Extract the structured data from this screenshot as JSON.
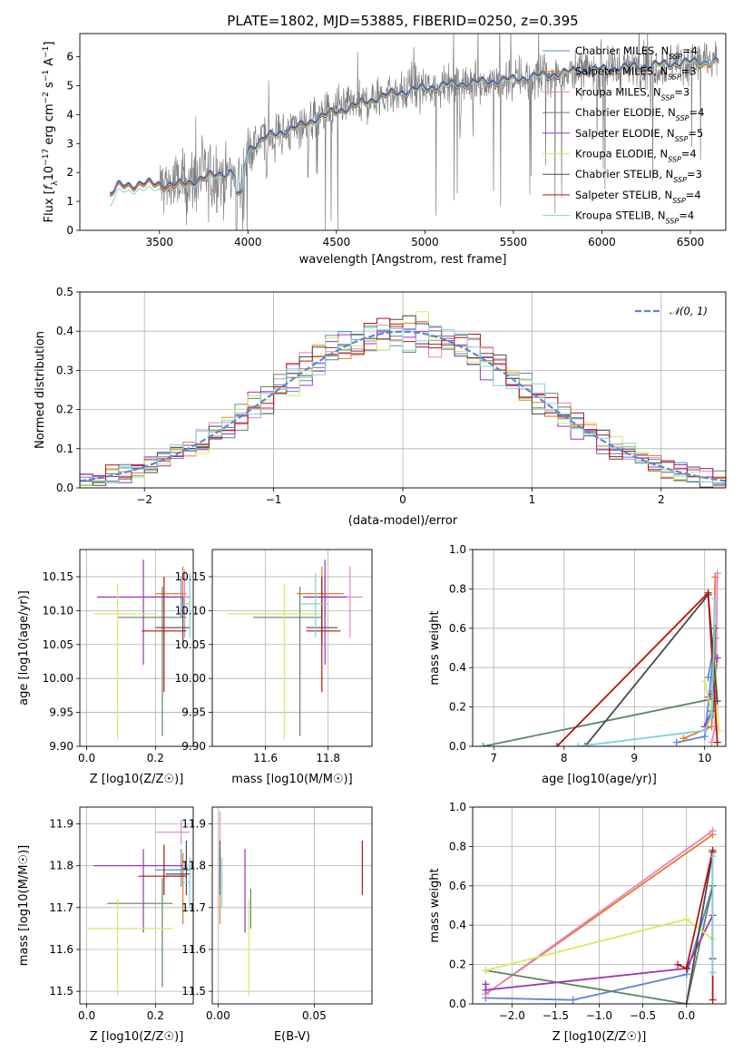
{
  "figure": {
    "title": "PLATE=1802, MJD=53885, FIBERID=0250, z=0.395"
  },
  "colors": {
    "c0": "#5b86d6",
    "c1": "#e77c22",
    "c2": "#e583c8",
    "c3": "#5f8560",
    "c4": "#9b37b6",
    "c5": "#d5ea5f",
    "c6": "#4b4b4b",
    "c7": "#b51414",
    "c8": "#7dd4da",
    "data": "#808080",
    "grid": "#b0b0b0",
    "ref": "#5b86d6"
  },
  "chart_data": [
    {
      "id": "spectrum",
      "type": "line",
      "title": "PLATE=1802, MJD=53885, FIBERID=0250, z=0.395",
      "xlabel": "wavelength [Angstrom, rest frame]",
      "ylabel": "Flux [f_λ 10^-17 erg cm^-2 s^-1 A^-1]",
      "xlim": [
        3050,
        6700
      ],
      "ylim": [
        0,
        6.8
      ],
      "xticks": [
        3500,
        4000,
        4500,
        5000,
        5500,
        6000,
        6500
      ],
      "yticks": [
        0,
        1,
        2,
        3,
        4,
        5,
        6
      ],
      "grid": false,
      "legend_position": "right",
      "legend": [
        "Chabrier MILES, N_SSP=4",
        "Salpeter MILES, N_SSP=3",
        "Kroupa MILES, N_SSP=3",
        "Chabrier ELODIE, N_SSP=4",
        "Salpeter ELODIE, N_SSP=5",
        "Kroupa ELODIE, N_SSP=4",
        "Chabrier STELIB, N_SSP=3",
        "Salpeter STELIB, N_SSP=4",
        "Kroupa STELIB, N_SSP=4"
      ],
      "model_continuum": {
        "x": [
          3220,
          3260,
          3300,
          3400,
          3500,
          3600,
          3700,
          3800,
          3900,
          3960,
          4000,
          4100,
          4200,
          4300,
          4400,
          4500,
          4600,
          4700,
          4800,
          4900,
          5000,
          5100,
          5200,
          5300,
          5400,
          5500,
          5600,
          5700,
          5800,
          5900,
          6000,
          6100,
          6200,
          6300,
          6400,
          6500,
          6600
        ],
        "y": [
          1.2,
          1.5,
          1.55,
          1.6,
          1.6,
          1.55,
          1.7,
          1.9,
          2.0,
          1.7,
          2.8,
          3.2,
          3.4,
          3.6,
          3.9,
          4.1,
          4.3,
          4.5,
          4.7,
          4.8,
          4.9,
          5.0,
          5.05,
          5.1,
          5.15,
          5.2,
          5.3,
          5.35,
          5.45,
          5.5,
          5.55,
          5.6,
          5.65,
          5.7,
          5.75,
          5.8,
          5.8
        ]
      },
      "kroupa_stelib_continuum": {
        "x": [
          3220,
          3260,
          3300,
          3400,
          3500,
          3600,
          3700,
          3800,
          3900,
          3960,
          4000,
          4100,
          4200,
          4300,
          4400,
          4500,
          4600,
          4700,
          4800,
          4900,
          5000,
          5100,
          5200,
          5300,
          5400,
          5500,
          5600,
          5700,
          5800,
          5900,
          6000,
          6100,
          6200,
          6300,
          6400,
          6500,
          6600
        ],
        "y": [
          0.8,
          1.3,
          1.35,
          1.4,
          1.4,
          1.45,
          1.6,
          1.8,
          1.95,
          1.65,
          2.7,
          3.1,
          3.35,
          3.5,
          3.8,
          4.0,
          4.2,
          4.4,
          4.6,
          4.75,
          4.85,
          4.95,
          5.0,
          5.05,
          5.1,
          5.15,
          5.25,
          5.3,
          5.4,
          5.45,
          5.5,
          5.55,
          5.6,
          5.65,
          5.7,
          5.75,
          5.8
        ]
      },
      "data_range": [
        3500,
        6650
      ]
    },
    {
      "id": "residuals",
      "type": "step",
      "xlabel": "(data-model)/error",
      "ylabel": "Normed distribution",
      "xlim": [
        -2.5,
        2.5
      ],
      "ylim": [
        0,
        0.5
      ],
      "xticks": [
        -2,
        -1,
        0,
        1,
        2
      ],
      "yticks": [
        0.0,
        0.1,
        0.2,
        0.3,
        0.4,
        0.5
      ],
      "grid": true,
      "legend_position": "top-right",
      "reference_label": "𝒩(0, 1)"
    },
    {
      "id": "age_vs_Z",
      "type": "errorbar",
      "xlabel": "Z [log10(Z/Z☉)]",
      "ylabel": "age  [log10(age/yr)]",
      "xlim": [
        -0.02,
        0.31
      ],
      "ylim": [
        9.9,
        10.19
      ],
      "xticks": [
        0.0,
        0.2
      ],
      "yticks": [
        9.9,
        9.95,
        10.0,
        10.05,
        10.1,
        10.15
      ],
      "grid": true,
      "points": [
        {
          "c": "c0",
          "x": 0.275,
          "y": 10.12,
          "xl": 0.22,
          "xh": 0.3,
          "yl": 10.09,
          "yh": 10.15
        },
        {
          "c": "c1",
          "x": 0.28,
          "y": 10.125,
          "xl": 0.2,
          "xh": 0.29,
          "yl": 10.09,
          "yh": 10.165
        },
        {
          "c": "c2",
          "x": 0.285,
          "y": 10.12,
          "xl": 0.18,
          "xh": 0.3,
          "yl": 10.06,
          "yh": 10.16
        },
        {
          "c": "c3",
          "x": 0.22,
          "y": 10.09,
          "xl": 0.09,
          "xh": 0.29,
          "yl": 9.915,
          "yh": 10.135
        },
        {
          "c": "c4",
          "x": 0.165,
          "y": 10.12,
          "xl": 0.03,
          "xh": 0.28,
          "yl": 10.02,
          "yh": 10.175
        },
        {
          "c": "c5",
          "x": 0.09,
          "y": 10.095,
          "xl": 0.02,
          "xh": 0.2,
          "yl": 9.91,
          "yh": 10.14
        },
        {
          "c": "c6",
          "x": 0.28,
          "y": 10.075,
          "xl": 0.2,
          "xh": 0.3,
          "yl": 10.05,
          "yh": 10.12
        },
        {
          "c": "c7",
          "x": 0.225,
          "y": 10.07,
          "xl": 0.16,
          "xh": 0.29,
          "yl": 9.98,
          "yh": 10.15
        },
        {
          "c": "c8",
          "x": 0.3,
          "y": 10.11,
          "xl": 0.28,
          "xh": 0.3,
          "yl": 10.06,
          "yh": 10.155
        }
      ]
    },
    {
      "id": "age_vs_mass",
      "type": "errorbar",
      "xlabel": "mass [log10(M/M☉)]",
      "ylabel": "",
      "xlim": [
        11.43,
        11.94
      ],
      "ylim": [
        9.9,
        10.19
      ],
      "xticks": [
        11.6,
        11.8
      ],
      "yticks": [
        9.9,
        9.95,
        10.0,
        10.05,
        10.1,
        10.15
      ],
      "grid": true,
      "points": [
        {
          "c": "c0",
          "x": 11.79,
          "y": 10.12,
          "xl": 11.72,
          "xh": 11.84,
          "yl": 10.09,
          "yh": 10.15
        },
        {
          "c": "c1",
          "x": 11.78,
          "y": 10.125,
          "xl": 11.7,
          "xh": 11.85,
          "yl": 10.09,
          "yh": 10.165
        },
        {
          "c": "c2",
          "x": 11.87,
          "y": 10.12,
          "xl": 11.83,
          "xh": 11.91,
          "yl": 10.06,
          "yh": 10.165
        },
        {
          "c": "c3",
          "x": 11.71,
          "y": 10.09,
          "xl": 11.56,
          "xh": 11.78,
          "yl": 9.915,
          "yh": 10.135
        },
        {
          "c": "c4",
          "x": 11.79,
          "y": 10.12,
          "xl": 11.72,
          "xh": 11.86,
          "yl": 10.02,
          "yh": 10.175
        },
        {
          "c": "c5",
          "x": 11.66,
          "y": 10.095,
          "xl": 11.48,
          "xh": 11.78,
          "yl": 9.91,
          "yh": 10.14
        },
        {
          "c": "c6",
          "x": 11.78,
          "y": 10.075,
          "xl": 11.73,
          "xh": 11.83,
          "yl": 10.05,
          "yh": 10.12
        },
        {
          "c": "c7",
          "x": 11.78,
          "y": 10.07,
          "xl": 11.73,
          "xh": 11.84,
          "yl": 9.98,
          "yh": 10.15
        },
        {
          "c": "c8",
          "x": 11.76,
          "y": 10.11,
          "xl": 11.71,
          "xh": 11.8,
          "yl": 10.06,
          "yh": 10.155
        }
      ]
    },
    {
      "id": "massweight_vs_age",
      "type": "line",
      "xlabel": "age  [log10(age/yr)]",
      "ylabel": "mass weight",
      "xlim": [
        6.7,
        10.3
      ],
      "ylim": [
        0.0,
        1.0
      ],
      "xticks": [
        7,
        8,
        9,
        10
      ],
      "yticks": [
        0.0,
        0.2,
        0.4,
        0.6,
        0.8,
        1.0
      ],
      "grid": true,
      "series": [
        {
          "c": "c0",
          "x": [
            9.6,
            10.0,
            10.15,
            10.05
          ],
          "y": [
            0.02,
            0.05,
            0.55,
            0.35
          ]
        },
        {
          "c": "c1",
          "x": [
            9.7,
            10.1,
            10.15
          ],
          "y": [
            0.04,
            0.1,
            0.86
          ]
        },
        {
          "c": "c2",
          "x": [
            10.1,
            10.15,
            10.18
          ],
          "y": [
            0.02,
            0.1,
            0.88
          ]
        },
        {
          "c": "c3",
          "x": [
            6.85,
            10.1,
            10.15,
            10.12
          ],
          "y": [
            0.0,
            0.24,
            0.6,
            0.16
          ]
        },
        {
          "c": "c4",
          "x": [
            10.0,
            10.1,
            10.18,
            10.12,
            10.05
          ],
          "y": [
            0.1,
            0.18,
            0.45,
            0.28,
            0.25
          ]
        },
        {
          "c": "c5",
          "x": [
            10.0,
            10.1,
            10.15,
            10.2
          ],
          "y": [
            0.33,
            0.17,
            0.42,
            0.08
          ]
        },
        {
          "c": "c6",
          "x": [
            8.3,
            10.05,
            10.18
          ],
          "y": [
            0.0,
            0.77,
            0.23
          ]
        },
        {
          "c": "c7",
          "x": [
            7.9,
            10.05,
            10.18
          ],
          "y": [
            0.0,
            0.78,
            0.02
          ]
        },
        {
          "c": "c8",
          "x": [
            8.2,
            10.0,
            10.1,
            10.15
          ],
          "y": [
            0.0,
            0.08,
            0.16,
            0.75
          ]
        }
      ]
    },
    {
      "id": "mass_vs_Z",
      "type": "errorbar",
      "xlabel": "Z [log10(Z/Z☉)]",
      "ylabel": "mass [log10(M/M☉)]",
      "xlim": [
        -0.02,
        0.31
      ],
      "ylim": [
        11.47,
        11.94
      ],
      "xticks": [
        0.0,
        0.2
      ],
      "yticks": [
        11.5,
        11.6,
        11.7,
        11.8,
        11.9
      ],
      "grid": true,
      "points": [
        {
          "c": "c0",
          "x": 0.275,
          "y": 11.79,
          "xl": 0.2,
          "xh": 0.3,
          "yl": 11.75,
          "yh": 11.84
        },
        {
          "c": "c1",
          "x": 0.28,
          "y": 11.775,
          "xl": 0.22,
          "xh": 0.29,
          "yl": 11.66,
          "yh": 11.83
        },
        {
          "c": "c2",
          "x": 0.275,
          "y": 11.88,
          "xl": 0.2,
          "xh": 0.3,
          "yl": 11.85,
          "yh": 11.91
        },
        {
          "c": "c3",
          "x": 0.22,
          "y": 11.71,
          "xl": 0.06,
          "xh": 0.25,
          "yl": 11.51,
          "yh": 11.77
        },
        {
          "c": "c4",
          "x": 0.165,
          "y": 11.8,
          "xl": 0.02,
          "xh": 0.28,
          "yl": 11.64,
          "yh": 11.84
        },
        {
          "c": "c5",
          "x": 0.09,
          "y": 11.65,
          "xl": 0.0,
          "xh": 0.25,
          "yl": 11.49,
          "yh": 11.72
        },
        {
          "c": "c6",
          "x": 0.29,
          "y": 11.78,
          "xl": 0.23,
          "xh": 0.3,
          "yl": 11.73,
          "yh": 11.86
        },
        {
          "c": "c7",
          "x": 0.225,
          "y": 11.775,
          "xl": 0.15,
          "xh": 0.29,
          "yl": 11.73,
          "yh": 11.85
        },
        {
          "c": "c8",
          "x": 0.3,
          "y": 11.76,
          "xl": 0.28,
          "xh": 0.3,
          "yl": 11.7,
          "yh": 11.82
        }
      ]
    },
    {
      "id": "mass_vs_ebv",
      "type": "errorbar",
      "xlabel": "E(B-V)",
      "ylabel": "",
      "xlim": [
        -0.003,
        0.08
      ],
      "ylim": [
        11.47,
        11.94
      ],
      "xticks": [
        0.0,
        0.05
      ],
      "yticks": [
        11.5,
        11.6,
        11.7,
        11.8,
        11.9
      ],
      "grid": true,
      "points": [
        {
          "c": "c0",
          "x": 0.001,
          "y": 11.79,
          "yl": 11.75,
          "yh": 11.84
        },
        {
          "c": "c1",
          "x": 0.001,
          "y": 11.775,
          "yl": 11.66,
          "yh": 11.83
        },
        {
          "c": "c2",
          "x": 0.001,
          "y": 11.88,
          "yl": 11.85,
          "yh": 11.93
        },
        {
          "c": "c3",
          "x": 0.017,
          "y": 11.71,
          "yl": 11.65,
          "yh": 11.745
        },
        {
          "c": "c4",
          "x": 0.014,
          "y": 11.8,
          "yl": 11.64,
          "yh": 11.84
        },
        {
          "c": "c5",
          "x": 0.016,
          "y": 11.65,
          "yl": 11.49,
          "yh": 11.72
        },
        {
          "c": "c6",
          "x": 0.001,
          "y": 11.78,
          "yl": 11.73,
          "yh": 11.86
        },
        {
          "c": "c7",
          "x": 0.075,
          "y": 11.79,
          "yl": 11.73,
          "yh": 11.86
        },
        {
          "c": "c8",
          "x": 0.002,
          "y": 11.76,
          "yl": 11.7,
          "yh": 11.82
        }
      ]
    },
    {
      "id": "massweight_vs_Z",
      "type": "line",
      "xlabel": "Z [log10(Z/Z☉)]",
      "ylabel": "mass weight",
      "xlim": [
        -2.45,
        0.45
      ],
      "ylim": [
        0.0,
        1.0
      ],
      "xticks": [
        -2.0,
        -1.5,
        -1.0,
        -0.5,
        0.0
      ],
      "yticks": [
        0.0,
        0.2,
        0.4,
        0.6,
        0.8,
        1.0
      ],
      "grid": true,
      "series": [
        {
          "c": "c0",
          "x": [
            -2.3,
            -1.3,
            0.0,
            0.3
          ],
          "y": [
            0.03,
            0.02,
            0.15,
            0.6
          ]
        },
        {
          "c": "c1",
          "x": [
            -2.3,
            0.3
          ],
          "y": [
            0.05,
            0.86
          ]
        },
        {
          "c": "c2",
          "x": [
            -2.3,
            0.3
          ],
          "y": [
            0.05,
            0.88
          ]
        },
        {
          "c": "c3",
          "x": [
            -2.3,
            0.0,
            0.3
          ],
          "y": [
            0.17,
            0.0,
            0.6
          ]
        },
        {
          "c": "c4",
          "x": [
            -2.3,
            -2.3,
            0.0,
            0.3
          ],
          "y": [
            0.1,
            0.07,
            0.18,
            0.45
          ]
        },
        {
          "c": "c5",
          "x": [
            -2.3,
            0.0,
            0.3
          ],
          "y": [
            0.17,
            0.43,
            0.33
          ]
        },
        {
          "c": "c6",
          "x": [
            0.0,
            0.3,
            0.3
          ],
          "y": [
            0.0,
            0.77,
            0.23
          ]
        },
        {
          "c": "c7",
          "x": [
            -0.1,
            0.0,
            0.3,
            0.3
          ],
          "y": [
            0.2,
            0.18,
            0.78,
            0.02
          ]
        },
        {
          "c": "c8",
          "x": [
            0.3,
            0.3
          ],
          "y": [
            0.16,
            0.75
          ]
        }
      ]
    }
  ]
}
